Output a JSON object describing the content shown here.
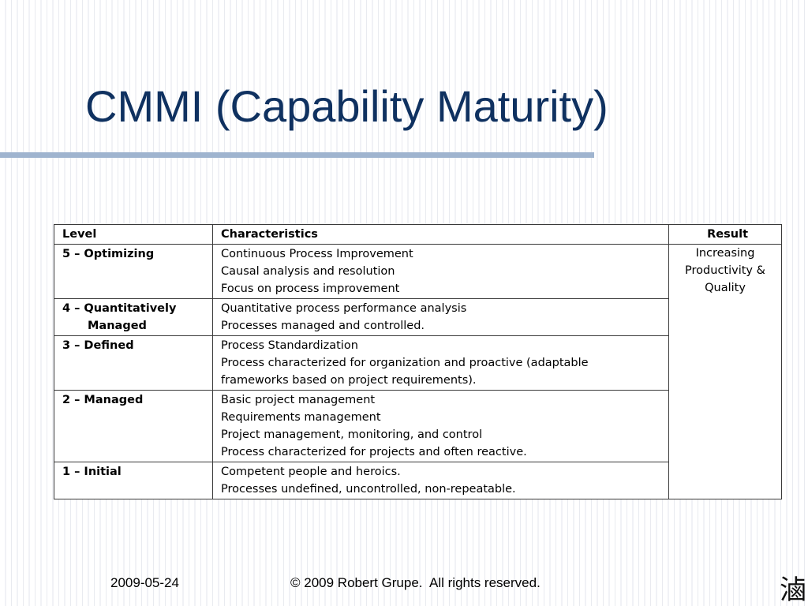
{
  "slide": {
    "title": "CMMI (Capability Maturity)"
  },
  "table": {
    "headers": {
      "level": "Level",
      "characteristics": "Characteristics",
      "result": "Result"
    },
    "rows": [
      {
        "level_line1": "5 – Optimizing",
        "level_line2": "",
        "characteristics": [
          "Continuous Process Improvement",
          "Causal analysis and resolution",
          "Focus on process improvement"
        ]
      },
      {
        "level_line1": "4 – Quantitatively",
        "level_line2": "Managed",
        "characteristics": [
          "Quantitative process performance analysis",
          "Processes managed and controlled."
        ]
      },
      {
        "level_line1": "3 – Defined",
        "level_line2": "",
        "characteristics": [
          "Process Standardization",
          "Process characterized for organization and proactive (adaptable",
          "frameworks based on project requirements)."
        ]
      },
      {
        "level_line1": "2 – Managed",
        "level_line2": "",
        "characteristics": [
          "Basic project management",
          "Requirements management",
          "Project management, monitoring, and control",
          "Process characterized for projects and often reactive."
        ]
      },
      {
        "level_line1": "1 – Initial",
        "level_line2": "",
        "characteristics": [
          "Competent people and heroics.",
          "Processes undefined, uncontrolled, non-repeatable."
        ]
      }
    ],
    "result_lines": [
      "Increasing",
      "Productivity &",
      "Quality"
    ]
  },
  "footer": {
    "date": "2009-05-24",
    "copyright": "© 2009 Robert Grupe.  All rights reserved.",
    "seal_text": "滷"
  },
  "colors": {
    "title": "#0f3160",
    "title_rule": "#9fb4cf",
    "table_border": "#3a3a3a"
  }
}
